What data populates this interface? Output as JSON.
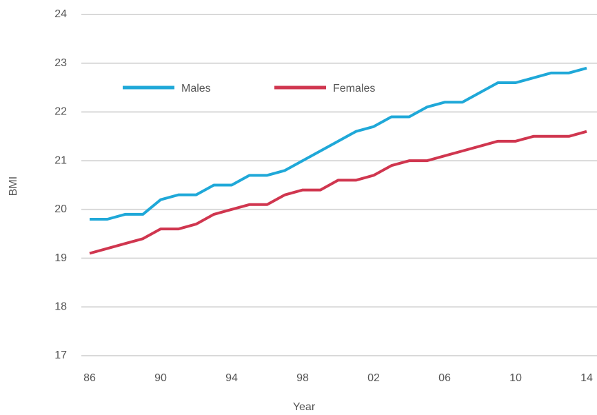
{
  "chart_data": {
    "type": "line",
    "xlabel": "Year",
    "ylabel": "BMI",
    "categories": [
      "86",
      null,
      null,
      null,
      "90",
      null,
      null,
      null,
      "94",
      null,
      null,
      null,
      "98",
      null,
      null,
      null,
      "02",
      null,
      null,
      null,
      "06",
      null,
      null,
      null,
      "10",
      null,
      null,
      null,
      "14"
    ],
    "series": [
      {
        "name": "Males",
        "color": "#1fa8d8",
        "values": [
          19.8,
          19.8,
          19.9,
          19.9,
          20.2,
          20.3,
          20.3,
          20.5,
          20.5,
          20.7,
          20.7,
          20.8,
          21.0,
          21.2,
          21.4,
          21.6,
          21.7,
          21.9,
          21.9,
          22.1,
          22.2,
          22.2,
          22.4,
          22.6,
          22.6,
          22.7,
          22.8,
          22.8,
          22.9
        ]
      },
      {
        "name": "Females",
        "color": "#d0364f",
        "values": [
          19.1,
          19.2,
          19.3,
          19.4,
          19.6,
          19.6,
          19.7,
          19.9,
          20.0,
          20.1,
          20.1,
          20.3,
          20.4,
          20.4,
          20.6,
          20.6,
          20.7,
          20.9,
          21.0,
          21.0,
          21.1,
          21.2,
          21.3,
          21.4,
          21.4,
          21.5,
          21.5,
          21.5,
          21.6
        ]
      }
    ],
    "ylim": [
      17,
      24
    ],
    "yticks": [
      17,
      18,
      19,
      20,
      21,
      22,
      23,
      24
    ],
    "grid": true,
    "legend": "upper-left"
  }
}
